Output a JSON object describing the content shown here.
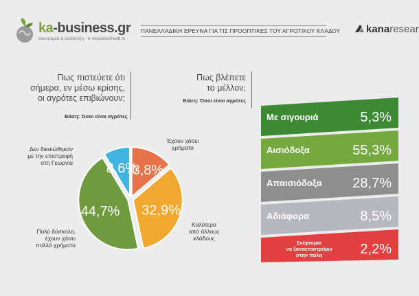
{
  "header": {
    "logo_text_ka": "ka",
    "logo_text_rest": "-business.gr",
    "logo_sub": "καινοτομία & ανάπτυξη  ·  e-περιοδικό/web tv",
    "title": "ΠΑΝΕΛΛΑΔΙΚΗ ΕΡΕΥΝΑ ΓΙΑ ΤΙΣ ΠΡΟΟΠΤΙΚΕΣ ΤΟΥ ΑΓΡΟΤΙΚΟΥ ΚΛΑΔΟΥ",
    "kana_bold": "kana",
    "kana_rest": "research"
  },
  "left_question": {
    "lines": [
      "Πως πιστεύετε ότι",
      "σήμερα, εν μέσω κρίσης,",
      "οι αγρότες επιβιώνουν;"
    ],
    "basis": "Βάση: Όσοι είναι αγρότες"
  },
  "right_question": {
    "lines": [
      "Πως βλέπετε",
      "το μέλλον;"
    ],
    "basis": "Βάση: Όσοι είναι αγρότες"
  },
  "chart_data": [
    {
      "type": "pie",
      "title": "Πως πιστεύετε ότι σήμερα, εν μέσω κρίσης, οι αγρότες επιβιώνουν;",
      "categories": [
        "Έχουν χάσει χρήματα",
        "Καλύτερα από άλλους κλάδους",
        "Πολύ δύσκολα, έχουν χάσει πολλά χρήματα",
        "Δεν δικαιώθηκαν με την επιστροφή στη Γεωργία"
      ],
      "label_lines": [
        [
          "Έχουν χάσει",
          "χρήματα"
        ],
        [
          "Καλύτερα",
          "από άλλους",
          "κλάδους"
        ],
        [
          "Πολύ δύσκολα,",
          "έχουν χάσει",
          "πολλά χρήματα"
        ],
        [
          "Δεν δικαιώθηκαν",
          "με την επιστροφή",
          "στη Γεωργία"
        ]
      ],
      "values": [
        13.8,
        32.9,
        44.7,
        8.6
      ],
      "value_labels": [
        "13,8%",
        "32,9%",
        "44,7%",
        "8,6%"
      ],
      "colors": [
        "#e8734a",
        "#f0a830",
        "#6f9a3e",
        "#40b4e0"
      ]
    },
    {
      "type": "bar",
      "title": "Πως βλέπετε το μέλλον;",
      "categories": [
        "Με σιγουριά",
        "Αισιόδοξα",
        "Απαισιόδοξα",
        "Αδιάφορα",
        "Σκέφτομαι να ξαναεπιστρέψω στην πόλη"
      ],
      "label_lines": [
        [
          "Με σιγουριά"
        ],
        [
          "Αισιόδοξα"
        ],
        [
          "Απαισιόδοξα"
        ],
        [
          "Αδιάφορα"
        ],
        [
          "Σκέφτομαι",
          "να ξαναεπιστρέψω",
          "στην πόλη"
        ]
      ],
      "values": [
        5.3,
        55.3,
        28.7,
        8.5,
        2.2
      ],
      "value_labels": [
        "5,3%",
        "55,3%",
        "28,7%",
        "8,5%",
        "2,2%"
      ],
      "colors": [
        "#3d8a35",
        "#75a93f",
        "#8e8e8e",
        "#b7b7bf",
        "#e24040"
      ]
    }
  ]
}
